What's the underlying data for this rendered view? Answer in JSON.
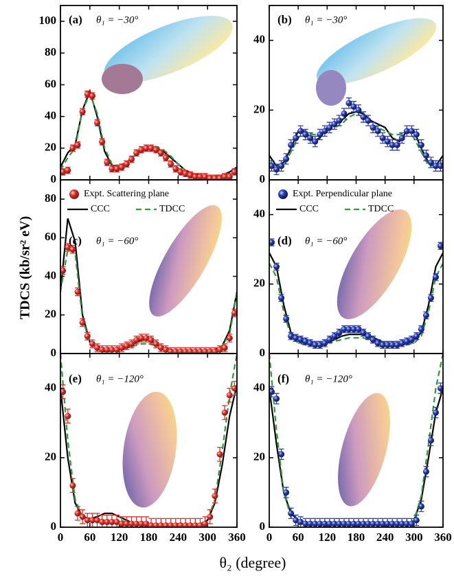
{
  "figure": {
    "ylabel": "TDCS (kb/sr² eV)",
    "xlabel": "θ₂ (degree)"
  },
  "chart_data": [
    {
      "type": "line",
      "label": "(a)",
      "annotation": "θ₁ = −30°",
      "xlim": [
        0,
        360
      ],
      "ylim": [
        0,
        110
      ],
      "xticks": [
        0,
        60,
        120,
        180,
        240,
        300,
        360
      ],
      "yticks": [
        0,
        20,
        40,
        60,
        80,
        100
      ],
      "show_xtick_labels": false,
      "x": [
        0,
        15,
        30,
        45,
        60,
        75,
        90,
        105,
        120,
        135,
        150,
        165,
        180,
        195,
        210,
        225,
        240,
        255,
        270,
        285,
        300,
        315,
        330,
        345,
        360
      ],
      "series": [
        {
          "color": "#000000",
          "dash": false,
          "values": [
            8,
            17,
            22,
            44,
            56,
            40,
            18,
            9,
            9,
            11,
            15,
            18,
            20,
            20,
            18,
            14,
            10,
            6,
            4,
            3,
            2,
            2,
            3,
            5,
            8
          ]
        },
        {
          "color": "#2e9a3a",
          "dash": true,
          "values": [
            6,
            14,
            20,
            44,
            54,
            42,
            20,
            10,
            9,
            11,
            15,
            19,
            21,
            21,
            19,
            15,
            10,
            6,
            4,
            2,
            2,
            2,
            2,
            4,
            6
          ]
        }
      ],
      "expt": {
        "color": "#e0302a",
        "error": 2,
        "x": [
          5,
          15,
          25,
          35,
          45,
          55,
          65,
          75,
          85,
          95,
          105,
          115,
          125,
          135,
          145,
          155,
          165,
          175,
          185,
          195,
          205,
          215,
          225,
          235,
          245,
          255,
          265,
          275,
          285,
          295,
          305,
          315,
          325,
          335,
          345,
          355
        ],
        "values": [
          5,
          6,
          20,
          22,
          43,
          54,
          53,
          36,
          24,
          11,
          7,
          7,
          8,
          10,
          13,
          17,
          19,
          20,
          20,
          19,
          17,
          14,
          10,
          7,
          5,
          4,
          3,
          2,
          2,
          2,
          1,
          1,
          1,
          2,
          2,
          5
        ]
      }
    },
    {
      "type": "line",
      "label": "(b)",
      "annotation": "θ₁ = −30°",
      "xlim": [
        0,
        360
      ],
      "ylim": [
        0,
        50
      ],
      "xticks": [
        0,
        60,
        120,
        180,
        240,
        300,
        360
      ],
      "yticks": [
        0,
        20,
        40
      ],
      "show_xtick_labels": false,
      "x": [
        0,
        15,
        30,
        45,
        60,
        75,
        90,
        105,
        120,
        135,
        150,
        165,
        180,
        195,
        210,
        225,
        240,
        255,
        270,
        285,
        300,
        315,
        330,
        345,
        360
      ],
      "series": [
        {
          "color": "#000000",
          "dash": false,
          "values": [
            7,
            4,
            5,
            9,
            14,
            14,
            11,
            12,
            15,
            16,
            17,
            19,
            19.5,
            19,
            17,
            16,
            15,
            12,
            11,
            14,
            14,
            9,
            5,
            4,
            7
          ]
        },
        {
          "color": "#2e9a3a",
          "dash": true,
          "values": [
            5,
            4,
            4,
            8,
            12,
            14,
            13,
            13,
            14,
            15,
            16,
            18,
            19,
            18,
            16,
            15,
            14,
            13,
            13,
            14,
            12,
            8,
            4,
            4,
            5
          ]
        }
      ],
      "expt": {
        "color": "#2a3fb0",
        "error": 1.5,
        "x": [
          5,
          15,
          25,
          35,
          45,
          55,
          65,
          75,
          85,
          95,
          105,
          115,
          125,
          135,
          145,
          155,
          165,
          175,
          185,
          195,
          205,
          215,
          225,
          235,
          245,
          255,
          265,
          275,
          285,
          295,
          305,
          315,
          325,
          335,
          345,
          355
        ],
        "values": [
          4,
          3,
          4,
          6,
          10,
          12,
          14,
          13,
          12,
          11,
          13,
          14,
          15,
          16,
          17,
          19,
          22,
          21,
          20,
          18,
          17,
          15,
          14,
          12,
          11,
          10,
          10,
          12,
          14,
          14,
          13,
          10,
          7,
          5,
          4,
          4
        ]
      }
    },
    {
      "type": "line",
      "label": "(c)",
      "annotation": "θ₁ = −60°",
      "xlim": [
        0,
        360
      ],
      "ylim": [
        0,
        90
      ],
      "xticks": [
        0,
        60,
        120,
        180,
        240,
        300,
        360
      ],
      "yticks": [
        0,
        20,
        40,
        60,
        80
      ],
      "show_xtick_labels": false,
      "x": [
        0,
        15,
        30,
        45,
        60,
        75,
        90,
        105,
        120,
        135,
        150,
        165,
        180,
        195,
        210,
        225,
        240,
        255,
        270,
        285,
        300,
        315,
        330,
        345,
        360
      ],
      "series": [
        {
          "name": "CCC",
          "color": "#000000",
          "dash": false,
          "values": [
            32,
            70,
            58,
            20,
            6,
            3,
            1,
            1,
            2,
            3,
            5,
            7,
            7,
            5,
            3,
            2,
            1,
            1,
            1,
            1,
            1,
            2,
            4,
            12,
            32
          ]
        },
        {
          "name": "TDCC",
          "color": "#2e9a3a",
          "dash": true,
          "values": [
            32,
            54,
            52,
            18,
            6,
            3,
            1,
            1,
            2,
            3,
            4,
            5,
            5,
            4,
            3,
            2,
            1,
            1,
            1,
            1,
            1,
            2,
            4,
            10,
            32
          ]
        }
      ],
      "expt": {
        "name": "Expt. Scattering plane",
        "color": "#e0302a",
        "error": 2,
        "x": [
          5,
          15,
          25,
          35,
          45,
          55,
          65,
          75,
          85,
          95,
          105,
          115,
          125,
          135,
          145,
          155,
          165,
          175,
          185,
          195,
          205,
          215,
          225,
          235,
          245,
          255,
          265,
          275,
          285,
          295,
          305,
          315,
          325,
          335,
          345,
          355
        ],
        "values": [
          43,
          55,
          54,
          32,
          16,
          9,
          5,
          3,
          2,
          2,
          2,
          2,
          3,
          4,
          5,
          7,
          8,
          8,
          7,
          5,
          3,
          2,
          1,
          1,
          1,
          1,
          1,
          1,
          1,
          1,
          1,
          1,
          2,
          3,
          8,
          21
        ]
      }
    },
    {
      "type": "line",
      "label": "(d)",
      "annotation": "θ₁ = −60°",
      "xlim": [
        0,
        360
      ],
      "ylim": [
        0,
        50
      ],
      "xticks": [
        0,
        60,
        120,
        180,
        240,
        300,
        360
      ],
      "yticks": [
        0,
        20,
        40
      ],
      "show_xtick_labels": false,
      "x": [
        0,
        15,
        30,
        45,
        60,
        75,
        90,
        105,
        120,
        135,
        150,
        165,
        180,
        195,
        210,
        225,
        240,
        255,
        270,
        285,
        300,
        315,
        330,
        345,
        360
      ],
      "series": [
        {
          "name": "CCC",
          "color": "#000000",
          "dash": false,
          "values": [
            29,
            25,
            14,
            6,
            4,
            3,
            3,
            3,
            3,
            4,
            5,
            5.5,
            5.5,
            5.5,
            5,
            4,
            3,
            3,
            3,
            3,
            4,
            6,
            14,
            25,
            29
          ]
        },
        {
          "name": "TDCC",
          "color": "#2e9a3a",
          "dash": true,
          "values": [
            26,
            22,
            12,
            5,
            3,
            2.5,
            2.5,
            2.5,
            3,
            3.5,
            4,
            4.5,
            4.5,
            4.5,
            4,
            3.5,
            3,
            2.5,
            2.5,
            2.5,
            3,
            5,
            12,
            22,
            26
          ]
        }
      ],
      "expt": {
        "name": "Expt. Perpendicular plane",
        "color": "#2a3fb0",
        "error": 1,
        "x": [
          5,
          15,
          25,
          35,
          45,
          55,
          65,
          75,
          85,
          95,
          105,
          115,
          125,
          135,
          145,
          155,
          165,
          175,
          185,
          195,
          205,
          215,
          225,
          235,
          245,
          255,
          265,
          275,
          285,
          295,
          305,
          315,
          325,
          335,
          345,
          355
        ],
        "values": [
          32,
          25,
          16,
          10,
          5,
          4.5,
          4,
          3.5,
          3,
          2.5,
          2.5,
          3,
          4,
          5,
          6,
          7,
          7,
          7,
          7,
          6,
          5,
          4,
          3,
          2.5,
          2.5,
          2.5,
          2.5,
          3,
          3.5,
          4,
          5,
          7,
          11,
          16,
          22,
          31
        ]
      }
    },
    {
      "type": "line",
      "label": "(e)",
      "annotation": "θ₁ = −120°",
      "xlim": [
        0,
        360
      ],
      "ylim": [
        0,
        50
      ],
      "xticks": [
        0,
        60,
        120,
        180,
        240,
        300,
        360
      ],
      "yticks": [
        0,
        20,
        40
      ],
      "show_xtick_labels": true,
      "x": [
        0,
        15,
        30,
        45,
        60,
        75,
        90,
        105,
        120,
        135,
        150,
        165,
        180,
        195,
        210,
        225,
        240,
        255,
        270,
        285,
        300,
        315,
        330,
        345,
        360
      ],
      "series": [
        {
          "color": "#000000",
          "dash": false,
          "values": [
            40,
            20,
            7,
            3,
            2.5,
            3,
            4,
            4,
            3,
            2,
            1,
            0.5,
            0.5,
            0.5,
            0.5,
            0.5,
            0.5,
            0.5,
            0.5,
            1,
            2,
            7,
            18,
            32,
            41
          ]
        },
        {
          "color": "#2e9a3a",
          "dash": true,
          "values": [
            50,
            25,
            8,
            3,
            2,
            2,
            2,
            2,
            2,
            1.5,
            1,
            0.5,
            0.5,
            0.5,
            0.5,
            0.5,
            0.5,
            0.5,
            0.5,
            1,
            2,
            8,
            22,
            38,
            50
          ]
        }
      ],
      "expt": {
        "color": "#e0302a",
        "error": 2,
        "x": [
          5,
          15,
          25,
          35,
          45,
          55,
          65,
          75,
          85,
          95,
          105,
          115,
          125,
          135,
          145,
          155,
          165,
          175,
          185,
          195,
          205,
          215,
          225,
          235,
          245,
          255,
          265,
          275,
          285,
          295,
          305,
          315,
          325,
          335,
          345,
          355
        ],
        "values": [
          39,
          32,
          12,
          4,
          3,
          2,
          2,
          2,
          1.5,
          1.5,
          1.5,
          1.5,
          1,
          1,
          1,
          1,
          1,
          1,
          0.5,
          0.5,
          0.5,
          0.5,
          0.5,
          0.5,
          0.5,
          0.5,
          0.5,
          0.5,
          0.5,
          1,
          3,
          9,
          21,
          33,
          38,
          40
        ]
      }
    },
    {
      "type": "line",
      "label": "(f)",
      "annotation": "θ₁ = −120°",
      "xlim": [
        0,
        360
      ],
      "ylim": [
        0,
        50
      ],
      "xticks": [
        0,
        60,
        120,
        180,
        240,
        300,
        360
      ],
      "yticks": [
        0,
        20,
        40
      ],
      "show_xtick_labels": true,
      "x": [
        0,
        15,
        30,
        45,
        60,
        75,
        90,
        105,
        120,
        135,
        150,
        165,
        180,
        195,
        210,
        225,
        240,
        255,
        270,
        285,
        300,
        315,
        330,
        345,
        360
      ],
      "series": [
        {
          "color": "#000000",
          "dash": false,
          "values": [
            40,
            24,
            10,
            4,
            2,
            1,
            1,
            1,
            1,
            1,
            1,
            1,
            1,
            1,
            1,
            1,
            1,
            1,
            1,
            1,
            2,
            8,
            20,
            33,
            40
          ]
        },
        {
          "color": "#2e9a3a",
          "dash": true,
          "values": [
            50,
            28,
            10,
            3,
            1.5,
            1,
            1,
            1,
            1,
            1,
            1,
            1,
            1,
            1,
            1,
            1,
            1,
            1,
            1,
            1,
            2,
            9,
            24,
            40,
            50
          ]
        }
      ],
      "expt": {
        "color": "#2a3fb0",
        "error": 1.5,
        "x": [
          5,
          15,
          25,
          35,
          45,
          55,
          65,
          75,
          85,
          95,
          105,
          115,
          125,
          135,
          145,
          155,
          165,
          175,
          185,
          195,
          205,
          215,
          225,
          235,
          245,
          255,
          265,
          275,
          285,
          295,
          305,
          315,
          325,
          335,
          345,
          355
        ],
        "values": [
          39,
          37,
          21,
          10,
          4,
          2,
          1.5,
          1,
          1,
          1,
          1,
          1,
          1,
          1,
          1,
          1,
          1,
          1,
          1,
          1,
          1,
          1,
          1,
          1,
          1,
          1,
          1,
          1,
          1,
          1,
          2,
          6,
          16,
          25,
          33,
          40
        ]
      }
    }
  ]
}
